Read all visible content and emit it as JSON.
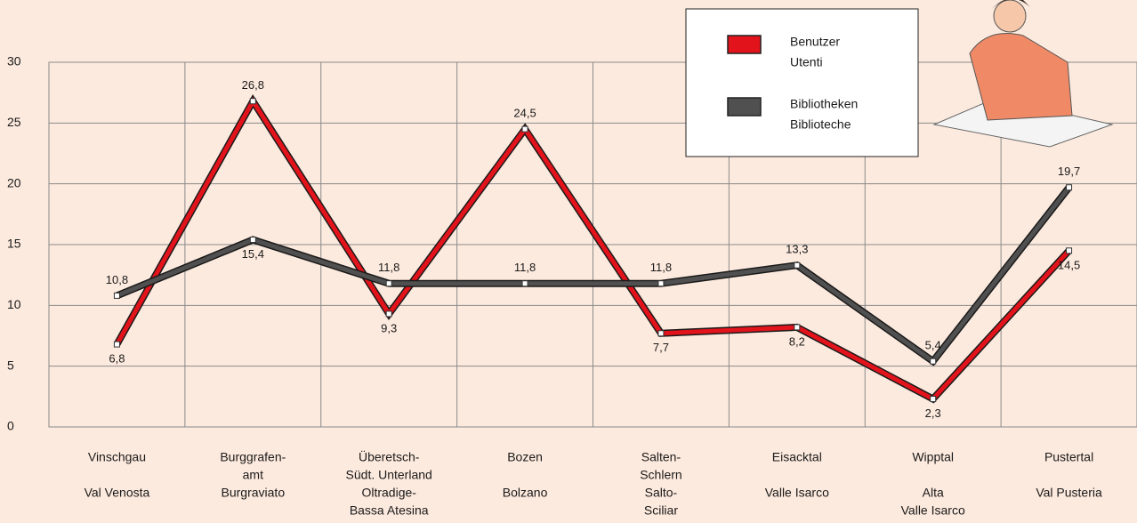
{
  "chart_data": {
    "type": "line",
    "categories": [
      {
        "de": [
          "Vinschgau"
        ],
        "it": [
          "Val Venosta"
        ]
      },
      {
        "de": [
          "Burggrafen-",
          "amt"
        ],
        "it": [
          "Burgraviato"
        ]
      },
      {
        "de": [
          "Überetsch-",
          "Südt. Unterland"
        ],
        "it": [
          "Oltradige-",
          "Bassa Atesina"
        ]
      },
      {
        "de": [
          "Bozen"
        ],
        "it": [
          "Bolzano"
        ]
      },
      {
        "de": [
          "Salten-",
          "Schlern"
        ],
        "it": [
          "Salto-",
          "Sciliar"
        ]
      },
      {
        "de": [
          "Eisacktal"
        ],
        "it": [
          "Valle Isarco"
        ]
      },
      {
        "de": [
          "Wipptal"
        ],
        "it": [
          "Alta",
          "Valle Isarco"
        ]
      },
      {
        "de": [
          "Pustertal"
        ],
        "it": [
          "Val Pusteria"
        ]
      }
    ],
    "series": [
      {
        "name": [
          "Benutzer",
          "Utenti"
        ],
        "color": "#e3131b",
        "values": [
          6.8,
          26.8,
          9.3,
          24.5,
          7.7,
          8.2,
          2.3,
          14.5
        ],
        "value_labels": [
          "6,8",
          "26,8",
          "9,3",
          "24,5",
          "7,7",
          "8,2",
          "2,3",
          "14,5"
        ]
      },
      {
        "name": [
          "Bibliotheken",
          "Biblioteche"
        ],
        "color": "#505050",
        "values": [
          10.8,
          15.4,
          11.8,
          11.8,
          11.8,
          13.3,
          5.4,
          19.7
        ],
        "value_labels": [
          "10,8",
          "15,4",
          "11,8",
          "11,8",
          "11,8",
          "13,3",
          "5,4",
          "19,7"
        ]
      }
    ],
    "ylim": [
      0,
      30
    ],
    "yticks": [
      0,
      5,
      10,
      15,
      20,
      25,
      30
    ],
    "grid": true
  }
}
